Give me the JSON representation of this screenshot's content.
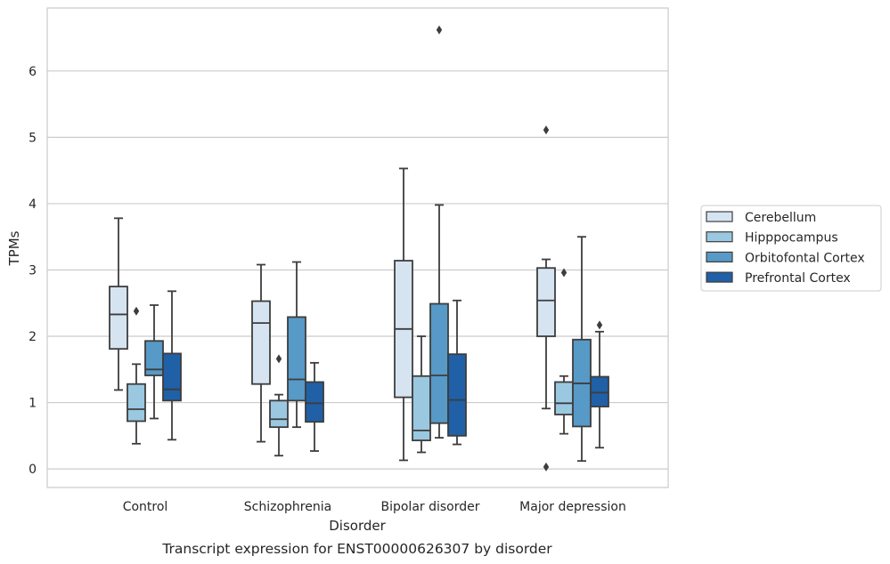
{
  "chart_data": {
    "type": "boxplot",
    "caption": "Transcript expression for ENST00000626307 by disorder",
    "xlabel": "Disorder",
    "ylabel": "TPMs",
    "ylim": [
      -0.28,
      6.95
    ],
    "yticks": [
      0,
      1,
      2,
      3,
      4,
      5,
      6
    ],
    "grid": "horizontal",
    "legend_position": "right",
    "categories": [
      "Control",
      "Schizophrenia",
      "Bipolar disorder",
      "Major depression"
    ],
    "series": [
      {
        "name": "Cerebellum",
        "color": "#d6e4f2",
        "boxes": [
          {
            "whisker_low": 1.19,
            "q1": 1.81,
            "median": 2.33,
            "q3": 2.75,
            "whisker_high": 3.78,
            "outliers": []
          },
          {
            "whisker_low": 0.41,
            "q1": 1.28,
            "median": 2.2,
            "q3": 2.53,
            "whisker_high": 3.08,
            "outliers": []
          },
          {
            "whisker_low": 0.13,
            "q1": 1.08,
            "median": 2.11,
            "q3": 3.14,
            "whisker_high": 4.53,
            "outliers": []
          },
          {
            "whisker_low": 0.91,
            "q1": 2.0,
            "median": 2.54,
            "q3": 3.03,
            "whisker_high": 3.16,
            "outliers": [
              5.11,
              0.03
            ]
          }
        ]
      },
      {
        "name": "Hipppocampus",
        "color": "#9ac8e0",
        "boxes": [
          {
            "whisker_low": 0.38,
            "q1": 0.72,
            "median": 0.9,
            "q3": 1.28,
            "whisker_high": 1.58,
            "outliers": [
              2.38
            ]
          },
          {
            "whisker_low": 0.2,
            "q1": 0.63,
            "median": 0.75,
            "q3": 1.03,
            "whisker_high": 1.12,
            "outliers": [
              1.66
            ]
          },
          {
            "whisker_low": 0.25,
            "q1": 0.43,
            "median": 0.58,
            "q3": 1.4,
            "whisker_high": 2.0,
            "outliers": []
          },
          {
            "whisker_low": 0.53,
            "q1": 0.82,
            "median": 0.99,
            "q3": 1.31,
            "whisker_high": 1.4,
            "outliers": [
              2.96
            ]
          }
        ]
      },
      {
        "name": "Orbitofontal Cortex",
        "color": "#5799c7",
        "boxes": [
          {
            "whisker_low": 0.76,
            "q1": 1.41,
            "median": 1.5,
            "q3": 1.93,
            "whisker_high": 2.47,
            "outliers": []
          },
          {
            "whisker_low": 0.63,
            "q1": 1.03,
            "median": 1.35,
            "q3": 2.29,
            "whisker_high": 3.12,
            "outliers": []
          },
          {
            "whisker_low": 0.47,
            "q1": 0.69,
            "median": 1.41,
            "q3": 2.49,
            "whisker_high": 3.98,
            "outliers": [
              6.62
            ]
          },
          {
            "whisker_low": 0.12,
            "q1": 0.64,
            "median": 1.29,
            "q3": 1.95,
            "whisker_high": 3.5,
            "outliers": []
          }
        ]
      },
      {
        "name": "Prefrontal Cortex",
        "color": "#2060a6",
        "boxes": [
          {
            "whisker_low": 0.44,
            "q1": 1.03,
            "median": 1.2,
            "q3": 1.74,
            "whisker_high": 2.68,
            "outliers": []
          },
          {
            "whisker_low": 0.27,
            "q1": 0.71,
            "median": 0.99,
            "q3": 1.31,
            "whisker_high": 1.6,
            "outliers": []
          },
          {
            "whisker_low": 0.37,
            "q1": 0.5,
            "median": 1.04,
            "q3": 1.73,
            "whisker_high": 2.54,
            "outliers": []
          },
          {
            "whisker_low": 0.32,
            "q1": 0.94,
            "median": 1.15,
            "q3": 1.39,
            "whisker_high": 2.07,
            "outliers": [
              2.17
            ]
          }
        ]
      }
    ]
  }
}
